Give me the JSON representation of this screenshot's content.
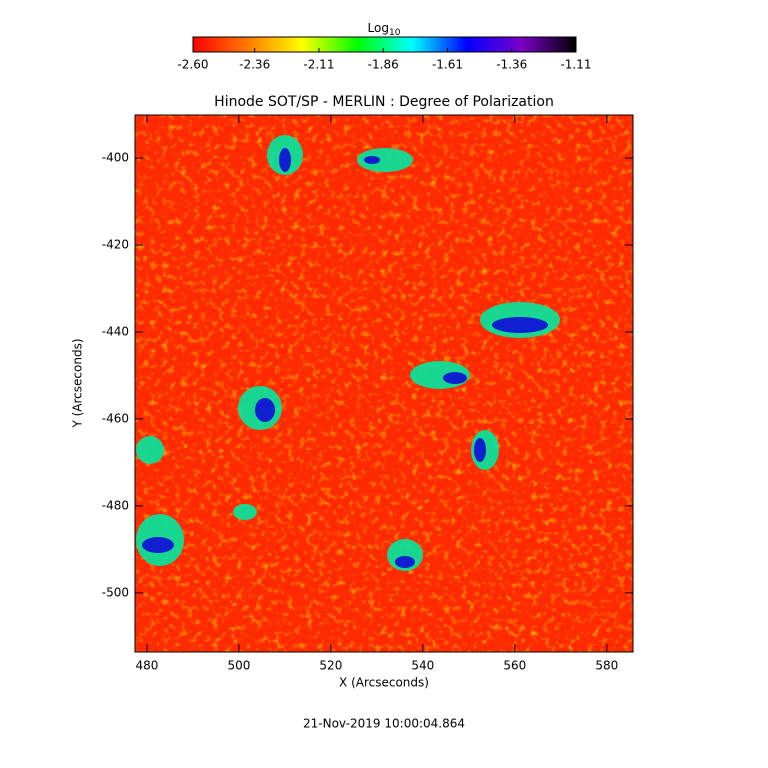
{
  "chart_data": {
    "type": "image",
    "title": "Hinode SOT/SP - MERLIN : Degree of Polarization",
    "xlabel": "X (Arcseconds)",
    "ylabel": "Y (Arcseconds)",
    "footer": "21-Nov-2019 10:00:04.864",
    "xlim": [
      477.4,
      585.7
    ],
    "xticks": [
      480,
      500,
      520,
      540,
      560,
      580
    ],
    "ylim": [
      -513.6,
      -390.1
    ],
    "yticks": [
      -400,
      -420,
      -440,
      -460,
      -480,
      -500
    ],
    "colorbar_label": "Log",
    "colorbar_label_sub": "10",
    "colorbar_lim": [
      -2.6,
      -1.11
    ],
    "colorbar_ticks": [
      {
        "value": -2.6,
        "label": "-2.60"
      },
      {
        "value": -2.36,
        "label": "-2.36"
      },
      {
        "value": -2.11,
        "label": "-2.11"
      },
      {
        "value": -1.86,
        "label": "-1.86"
      },
      {
        "value": -1.61,
        "label": "-1.61"
      },
      {
        "value": -1.36,
        "label": "-1.36"
      },
      {
        "value": -1.11,
        "label": "-1.11"
      }
    ],
    "colormap": [
      "#ff0000",
      "#ff7a00",
      "#ffff00",
      "#00ff00",
      "#00ffff",
      "#0000ff",
      "#7a00c8",
      "#000000"
    ]
  }
}
